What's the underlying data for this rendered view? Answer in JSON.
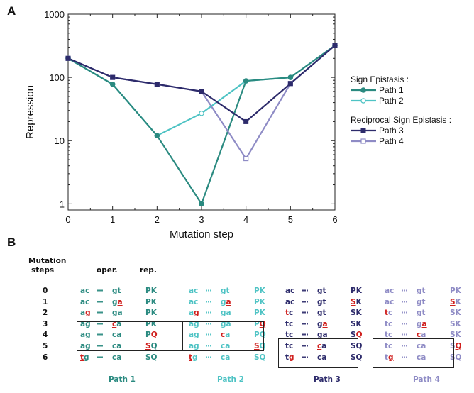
{
  "panel_a_letter": "A",
  "panel_b_letter": "B",
  "chart_data": {
    "type": "line",
    "xlabel": "Mutation step",
    "ylabel": "Repression",
    "x": [
      0,
      1,
      2,
      3,
      4,
      5,
      6
    ],
    "xlim": [
      0,
      6
    ],
    "ylim": [
      0.8,
      1000
    ],
    "yscale": "log",
    "yticks": [
      "1",
      "10",
      "100",
      "1000"
    ],
    "xticks": [
      "0",
      "1",
      "2",
      "3",
      "4",
      "5",
      "6"
    ],
    "grid": false,
    "legend_position": "right",
    "legend_groups": [
      {
        "title": "Sign Epistasis :",
        "series": [
          0,
          1
        ]
      },
      {
        "title": "Reciprocal Sign Epistasis :",
        "series": [
          2,
          3
        ]
      }
    ],
    "series": [
      {
        "name": "Path 1",
        "color": "#2a8a80",
        "marker": "filled-circle",
        "values": [
          200,
          78,
          12,
          1,
          88,
          100,
          320
        ]
      },
      {
        "name": "Path 2",
        "color": "#4ec3c4",
        "marker": "open-circle",
        "values": [
          200,
          78,
          12,
          27,
          88,
          100,
          320
        ]
      },
      {
        "name": "Path 3",
        "color": "#2d2b6b",
        "marker": "filled-square",
        "values": [
          200,
          100,
          78,
          60,
          20,
          80,
          320
        ]
      },
      {
        "name": "Path 4",
        "color": "#8e8bc5",
        "marker": "open-square",
        "values": [
          200,
          100,
          78,
          60,
          5.2,
          80,
          320
        ]
      }
    ]
  },
  "table": {
    "header": {
      "mutation": "Mutation",
      "steps": "steps",
      "oper": "oper.",
      "rep": "rep."
    },
    "step_labels": [
      "0",
      "1",
      "2",
      "3",
      "4",
      "5",
      "6"
    ],
    "paths": [
      {
        "label": "Path 1",
        "color": "#2a8a80",
        "rows": [
          [
            [
              "ac",
              0
            ],
            [
              "···",
              0
            ],
            [
              "gt",
              0
            ],
            [
              "PK",
              0
            ]
          ],
          [
            [
              "ac",
              0
            ],
            [
              "···",
              0
            ],
            [
              "g",
              0,
              "a",
              1
            ],
            [
              "PK",
              0
            ]
          ],
          [
            [
              "a",
              0,
              "g",
              1
            ],
            [
              "···",
              0
            ],
            [
              "ga",
              0
            ],
            [
              "PK",
              0
            ]
          ],
          [
            [
              "ag",
              0
            ],
            [
              "···",
              0
            ],
            [
              "c",
              1,
              "a",
              0
            ],
            [
              "PK",
              0
            ]
          ],
          [
            [
              "ag",
              0
            ],
            [
              "···",
              0
            ],
            [
              "ca",
              0
            ],
            [
              "P",
              0,
              "Q",
              1
            ]
          ],
          [
            [
              "ag",
              0
            ],
            [
              "···",
              0
            ],
            [
              "ca",
              0
            ],
            [
              "S",
              1,
              "Q",
              0
            ]
          ],
          [
            [
              "t",
              1,
              "g",
              0
            ],
            [
              "···",
              0
            ],
            [
              "ca",
              0
            ],
            [
              "SQ",
              0
            ]
          ]
        ]
      },
      {
        "label": "Path 2",
        "color": "#4ec3c4",
        "rows": [
          [
            [
              "ac",
              0
            ],
            [
              "···",
              0
            ],
            [
              "gt",
              0
            ],
            [
              "PK",
              0
            ]
          ],
          [
            [
              "ac",
              0
            ],
            [
              "···",
              0
            ],
            [
              "g",
              0,
              "a",
              1
            ],
            [
              "PK",
              0
            ]
          ],
          [
            [
              "a",
              0,
              "g",
              1
            ],
            [
              "···",
              0
            ],
            [
              "ga",
              0
            ],
            [
              "PK",
              0
            ]
          ],
          [
            [
              "ag",
              0
            ],
            [
              "···",
              0
            ],
            [
              "ga",
              0
            ],
            [
              "P",
              0,
              "Q",
              1
            ]
          ],
          [
            [
              "ag",
              0
            ],
            [
              "···",
              0
            ],
            [
              "c",
              1,
              "a",
              0
            ],
            [
              "PQ",
              0
            ]
          ],
          [
            [
              "ag",
              0
            ],
            [
              "···",
              0
            ],
            [
              "ca",
              0
            ],
            [
              "S",
              1,
              "Q",
              0
            ]
          ],
          [
            [
              "t",
              1,
              "g",
              0
            ],
            [
              "···",
              0
            ],
            [
              "ca",
              0
            ],
            [
              "SQ",
              0
            ]
          ]
        ]
      },
      {
        "label": "Path 3",
        "color": "#2d2b6b",
        "rows": [
          [
            [
              "ac",
              0
            ],
            [
              "···",
              0
            ],
            [
              "gt",
              0
            ],
            [
              "PK",
              0
            ]
          ],
          [
            [
              "ac",
              0
            ],
            [
              "···",
              0
            ],
            [
              "gt",
              0
            ],
            [
              "S",
              1,
              "K",
              0
            ]
          ],
          [
            [
              "t",
              1,
              "c",
              0
            ],
            [
              "···",
              0
            ],
            [
              "gt",
              0
            ],
            [
              "SK",
              0
            ]
          ],
          [
            [
              "tc",
              0
            ],
            [
              "···",
              0
            ],
            [
              "g",
              0,
              "a",
              1
            ],
            [
              "SK",
              0
            ]
          ],
          [
            [
              "tc",
              0
            ],
            [
              "···",
              0
            ],
            [
              "ga",
              0
            ],
            [
              "S",
              0,
              "Q",
              1
            ]
          ],
          [
            [
              "tc",
              0
            ],
            [
              "···",
              0
            ],
            [
              "c",
              1,
              "a",
              0
            ],
            [
              "SQ",
              0
            ]
          ],
          [
            [
              "t",
              0,
              "g",
              1
            ],
            [
              "···",
              0
            ],
            [
              "ca",
              0
            ],
            [
              "SQ",
              0
            ]
          ]
        ]
      },
      {
        "label": "Path 4",
        "color": "#8e8bc5",
        "rows": [
          [
            [
              "ac",
              0
            ],
            [
              "···",
              0
            ],
            [
              "gt",
              0
            ],
            [
              "PK",
              0
            ]
          ],
          [
            [
              "ac",
              0
            ],
            [
              "···",
              0
            ],
            [
              "gt",
              0
            ],
            [
              "S",
              1,
              "K",
              0
            ]
          ],
          [
            [
              "t",
              1,
              "c",
              0
            ],
            [
              "···",
              0
            ],
            [
              "gt",
              0
            ],
            [
              "SK",
              0
            ]
          ],
          [
            [
              "tc",
              0
            ],
            [
              "···",
              0
            ],
            [
              "g",
              0,
              "a",
              1
            ],
            [
              "SK",
              0
            ]
          ],
          [
            [
              "tc",
              0
            ],
            [
              "···",
              0
            ],
            [
              "c",
              1,
              "a",
              0
            ],
            [
              "SK",
              0
            ]
          ],
          [
            [
              "tc",
              0
            ],
            [
              "···",
              0
            ],
            [
              "ca",
              0
            ],
            [
              "S",
              0,
              "Q",
              1
            ]
          ],
          [
            [
              "t",
              0,
              "g",
              1
            ],
            [
              "···",
              0
            ],
            [
              "ca",
              0
            ],
            [
              "SQ",
              0
            ]
          ]
        ]
      }
    ],
    "mutation_color": "#d0201e"
  }
}
